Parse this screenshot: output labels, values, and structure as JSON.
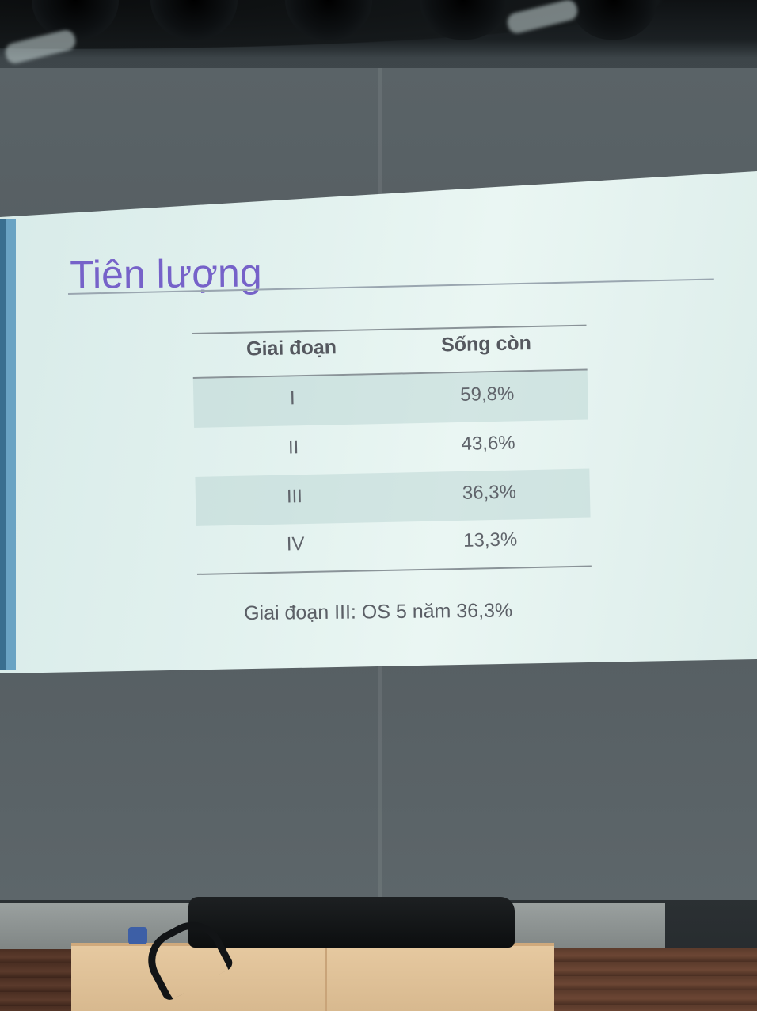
{
  "slide": {
    "title": "Tiên lượng",
    "table": {
      "headers": [
        "Giai đoạn",
        "Sống còn"
      ],
      "rows": [
        {
          "stage": "I",
          "survival": "59,8%"
        },
        {
          "stage": "II",
          "survival": "43,6%"
        },
        {
          "stage": "III",
          "survival": "36,3%"
        },
        {
          "stage": "IV",
          "survival": "13,3%"
        }
      ]
    },
    "note": "Giai đoạn III: OS 5 năm 36,3%"
  },
  "colors": {
    "title": "#7662c9",
    "slide_background": "#e3f2ef",
    "accent_bar": "#6aa3c3",
    "table_text": "#60646b"
  }
}
